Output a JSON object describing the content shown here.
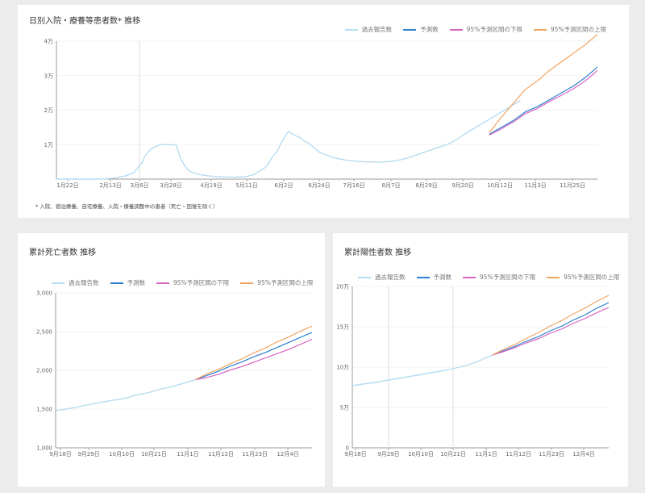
{
  "colors": {
    "history": "#b7dcf2",
    "forecast": "#2c7fce",
    "lower": "#d663c2",
    "upper": "#f2a55e"
  },
  "legend_labels": [
    "過去報告数",
    "予測数",
    "95%予測区間の下限",
    "95%予測区間の上限"
  ],
  "card1": {
    "title": "日別入院・療養等患者数* 推移",
    "note": "* 入院、宿泊療養、自宅療養、入院・療養調整中の患者（死亡・回復を除く）"
  },
  "card2": {
    "title": "累計死亡者数 推移"
  },
  "card3": {
    "title": "累計陽性者数 推移"
  },
  "chart_data": [
    {
      "type": "line",
      "title": "日別入院・療養等患者数* 推移",
      "x_ticks": [
        "1月22日",
        "2月13日",
        "3月6日",
        "3月28日",
        "4月19日",
        "5月11日",
        "6月2日",
        "6月24日",
        "7月16日",
        "8月7日",
        "8月29日",
        "9月20日",
        "10月12日",
        "11月3日",
        "11月25日"
      ],
      "y_ticks": [
        0,
        10000,
        20000,
        30000,
        40000
      ],
      "y_tick_labels": [
        "",
        "1万",
        "2万",
        "3万",
        "4万"
      ],
      "ylim": [
        0,
        40000
      ],
      "series": [
        {
          "name": "過去報告数",
          "x": [
            0,
            44,
            50,
            60,
            70,
            78,
            82,
            86,
            88,
            92,
            96,
            100,
            104,
            108,
            112,
            116,
            120,
            124,
            128,
            132,
            140,
            150,
            160,
            170,
            180,
            188,
            192,
            196,
            200,
            204,
            208,
            210,
            212,
            214,
            216,
            218,
            220,
            222,
            224,
            226,
            228,
            230,
            232,
            234,
            236,
            240,
            244,
            248,
            252,
            256,
            258,
            260,
            262,
            264,
            266,
            268,
            272,
            276,
            280,
            284,
            288,
            292,
            296,
            300,
            304,
            308,
            312,
            316,
            320,
            324,
            328,
            332,
            336,
            340,
            344,
            348,
            352,
            356,
            360,
            364,
            368,
            372,
            376,
            380,
            384,
            388,
            392,
            396,
            400,
            404,
            408,
            412,
            416,
            420,
            424,
            428,
            432,
            436,
            440,
            444,
            448,
            452,
            456,
            460,
            464
          ],
          "y": [
            0,
            0,
            100,
            400,
            1000,
            2000,
            3500,
            5000,
            6500,
            8000,
            9000,
            9500,
            10000,
            10000,
            10000,
            10000,
            9800,
            6000,
            4000,
            2500,
            1500,
            1000,
            700,
            600,
            600,
            700,
            900,
            1200,
            1800,
            2500,
            3200,
            3800,
            4500,
            5500,
            6500,
            7200,
            7800,
            8800,
            10000,
            11000,
            12000,
            13000,
            13800,
            13500,
            13000,
            12500,
            12000,
            11000,
            10500,
            9500,
            9000,
            8500,
            8000,
            7700,
            7400,
            7200,
            6800,
            6400,
            6000,
            5800,
            5600,
            5400,
            5300,
            5200,
            5100,
            5000,
            5000,
            5000,
            4900,
            4900,
            5000,
            5100,
            5200,
            5400,
            5600,
            5900,
            6200,
            6600,
            7000,
            7400,
            7800,
            8200,
            8600,
            9000,
            9400,
            9800,
            10200,
            10800,
            11500,
            12200,
            13000,
            13700,
            14400,
            15100,
            15800,
            16500,
            17200,
            17900,
            18600,
            19300,
            20000,
            20700,
            21400,
            22100,
            22800
          ]
        },
        {
          "name": "予測数",
          "x": [
            433,
            445,
            457,
            469,
            481,
            493,
            505,
            517,
            529,
            541
          ],
          "y": [
            13000,
            15000,
            17000,
            19500,
            21000,
            23000,
            25000,
            27000,
            29500,
            32500
          ]
        },
        {
          "name": "95%予測区間の下限",
          "x": [
            433,
            445,
            457,
            469,
            481,
            493,
            505,
            517,
            529,
            541
          ],
          "y": [
            12800,
            14600,
            16600,
            19000,
            20500,
            22500,
            24300,
            26200,
            28500,
            31500
          ]
        },
        {
          "name": "95%予測区間の上限",
          "x": [
            433,
            445,
            457,
            469,
            481,
            493,
            505,
            517,
            529,
            541
          ],
          "y": [
            13500,
            18000,
            22000,
            26000,
            28500,
            31500,
            34000,
            36500,
            39000,
            42000
          ]
        }
      ]
    },
    {
      "type": "line",
      "title": "累計死亡者数 推移",
      "x_ticks": [
        "9月18日",
        "9月29日",
        "10月10日",
        "10月21日",
        "11月1日",
        "11月12日",
        "11月23日",
        "12月4日"
      ],
      "y_ticks": [
        1000,
        1500,
        2000,
        2500,
        3000
      ],
      "y_tick_labels": [
        "1,000",
        "1,500",
        "2,000",
        "2,500",
        "3,000"
      ],
      "ylim": [
        1000,
        3000
      ],
      "series": [
        {
          "name": "過去報告数",
          "x": [
            0,
            5,
            11,
            16,
            22,
            27,
            33,
            38,
            44,
            49,
            55,
            60,
            66
          ],
          "y": [
            1480,
            1500,
            1530,
            1560,
            1590,
            1615,
            1640,
            1680,
            1715,
            1755,
            1790,
            1830,
            1880
          ]
        },
        {
          "name": "予測数",
          "x": [
            66,
            71,
            77,
            82,
            88,
            93,
            99,
            104,
            110,
            115,
            121
          ],
          "y": [
            1880,
            1930,
            1990,
            2050,
            2110,
            2170,
            2230,
            2290,
            2360,
            2420,
            2490
          ]
        },
        {
          "name": "95%予測区間の下限",
          "x": [
            66,
            71,
            77,
            82,
            88,
            93,
            99,
            104,
            110,
            115,
            121
          ],
          "y": [
            1880,
            1905,
            1950,
            2000,
            2050,
            2100,
            2160,
            2210,
            2270,
            2330,
            2400
          ]
        },
        {
          "name": "95%予測区間の上限",
          "x": [
            66,
            71,
            77,
            82,
            88,
            93,
            99,
            104,
            110,
            115,
            121
          ],
          "y": [
            1880,
            1950,
            2015,
            2080,
            2150,
            2220,
            2290,
            2360,
            2430,
            2500,
            2570
          ]
        }
      ]
    },
    {
      "type": "line",
      "title": "累計陽性者数 推移",
      "x_ticks": [
        "9月18日",
        "9月29日",
        "10月10日",
        "10月21日",
        "11月1日",
        "11月12日",
        "11月23日",
        "12月4日"
      ],
      "y_ticks": [
        0,
        50000,
        100000,
        150000,
        200000
      ],
      "y_tick_labels": [
        "0",
        "5万",
        "10万",
        "15万",
        "20万"
      ],
      "ylim": [
        0,
        200000
      ],
      "series": [
        {
          "name": "過去報告数",
          "x": [
            0,
            5,
            11,
            16,
            22,
            27,
            33,
            38,
            44,
            49,
            55,
            60,
            66
          ],
          "y": [
            77000,
            79000,
            81000,
            83500,
            86000,
            88500,
            91000,
            93500,
            96000,
            99000,
            103000,
            108000,
            115000
          ]
        },
        {
          "name": "予測数",
          "x": [
            66,
            71,
            77,
            82,
            88,
            93,
            99,
            104,
            110,
            115,
            121
          ],
          "y": [
            115000,
            120000,
            126000,
            132000,
            138000,
            144500,
            151000,
            158000,
            165000,
            172500,
            180000
          ]
        },
        {
          "name": "95%予測区間の下限",
          "x": [
            66,
            71,
            77,
            82,
            88,
            93,
            99,
            104,
            110,
            115,
            121
          ],
          "y": [
            115000,
            119000,
            124500,
            130000,
            135500,
            141500,
            147500,
            154000,
            160500,
            167000,
            174000
          ]
        },
        {
          "name": "95%予測区間の上限",
          "x": [
            66,
            71,
            77,
            82,
            88,
            93,
            99,
            104,
            110,
            115,
            121
          ],
          "y": [
            115000,
            121500,
            128500,
            135500,
            143000,
            150500,
            158000,
            165500,
            173500,
            181000,
            189000
          ]
        }
      ]
    }
  ]
}
